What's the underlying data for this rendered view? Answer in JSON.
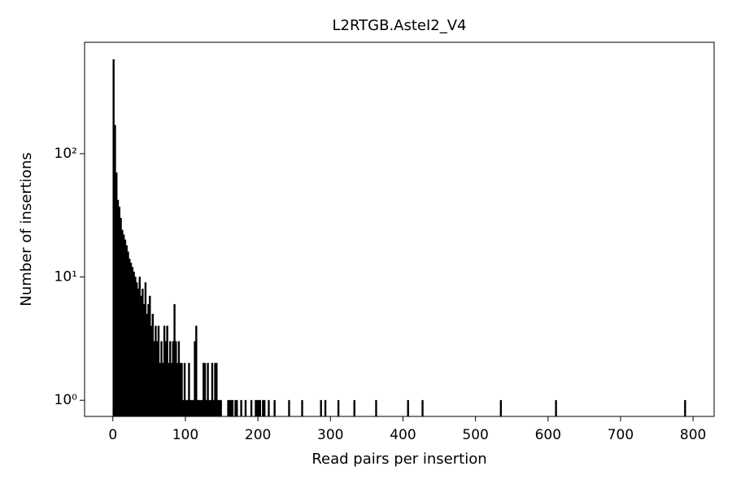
{
  "chart_data": {
    "type": "histogram",
    "title": "L2RTGB.AsteI2_V4",
    "xlabel": "Read pairs per insertion",
    "ylabel": "Number of insertions",
    "color": "#000000",
    "log_y": true,
    "bins": [
      0,
      2,
      4,
      6,
      8,
      10,
      12,
      14,
      16,
      18,
      20,
      22,
      24,
      26,
      28,
      30,
      32,
      34,
      36,
      38,
      40,
      42,
      44,
      46,
      48,
      50,
      52,
      54,
      56,
      58,
      60,
      62,
      64,
      66,
      68,
      70,
      72,
      74,
      76,
      78,
      80,
      82,
      84,
      86,
      88,
      90,
      92,
      94,
      96,
      98,
      100,
      102,
      104,
      106,
      108,
      110,
      112,
      114,
      116,
      118,
      120,
      122,
      124,
      126,
      128,
      130,
      132,
      134,
      136,
      138,
      140,
      142,
      144,
      146,
      148,
      150,
      158,
      160,
      162,
      164,
      166,
      168,
      170,
      172,
      176,
      178,
      182,
      184,
      190,
      192,
      196,
      198,
      200,
      202,
      204,
      206,
      208,
      210,
      214,
      216,
      222,
      224,
      242,
      244,
      260,
      262,
      286,
      288,
      292,
      294,
      310,
      312,
      332,
      334,
      362,
      364,
      406,
      408,
      426,
      428,
      534,
      536,
      610,
      612,
      788,
      790
    ],
    "values": [
      580,
      170,
      70,
      42,
      37,
      30,
      24,
      22,
      20,
      18,
      16,
      14,
      13,
      12,
      11,
      10,
      9,
      8,
      10,
      7,
      8,
      6,
      9,
      5,
      6,
      7,
      4,
      5,
      3,
      4,
      3,
      4,
      2,
      3,
      2,
      4,
      3,
      4,
      2,
      3,
      2,
      3,
      6,
      3,
      2,
      3,
      2,
      2,
      1,
      2,
      1,
      1,
      2,
      1,
      1,
      1,
      3,
      4,
      1,
      1,
      1,
      1,
      2,
      2,
      1,
      2,
      1,
      1,
      2,
      1,
      2,
      2,
      1,
      1,
      1,
      0,
      1,
      1,
      1,
      1,
      0,
      1,
      1,
      0,
      1,
      0,
      1,
      0,
      1,
      0,
      1,
      1,
      1,
      1,
      0,
      1,
      1,
      0,
      1,
      0,
      1,
      0,
      1,
      0,
      1,
      0,
      1,
      0,
      1,
      0,
      1,
      0,
      1,
      0,
      1,
      0,
      1,
      0,
      1,
      0,
      1,
      0,
      1,
      0,
      1
    ],
    "xlim": [
      -39,
      829
    ],
    "ylim": [
      0.74,
      800
    ],
    "xticks": [
      0,
      100,
      200,
      300,
      400,
      500,
      600,
      700,
      800
    ],
    "yticks": [
      {
        "value": 1,
        "label": "10⁰"
      },
      {
        "value": 10,
        "label": "10¹"
      },
      {
        "value": 100,
        "label": "10²"
      }
    ]
  }
}
